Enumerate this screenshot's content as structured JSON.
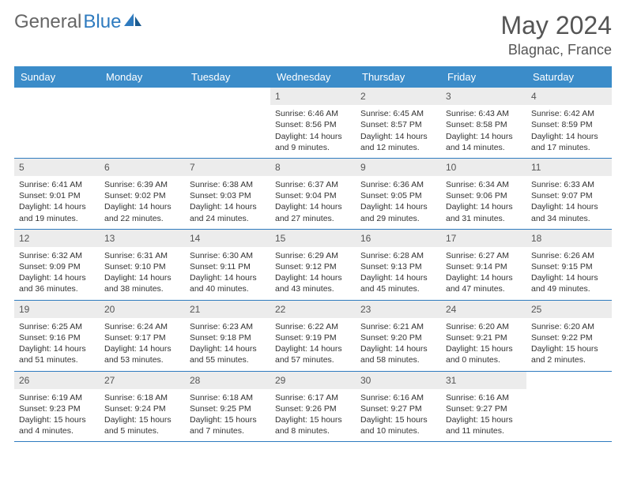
{
  "logo": {
    "text_gray": "General",
    "text_blue": "Blue"
  },
  "title": "May 2024",
  "location": "Blagnac, France",
  "day_names": [
    "Sunday",
    "Monday",
    "Tuesday",
    "Wednesday",
    "Thursday",
    "Friday",
    "Saturday"
  ],
  "colors": {
    "header_bg": "#3b8cc9",
    "header_text": "#ffffff",
    "daynum_bg": "#ececec",
    "border": "#2f7bbf",
    "text": "#333333",
    "title_text": "#555555"
  },
  "weeks": [
    [
      null,
      null,
      null,
      {
        "n": "1",
        "sunrise": "6:46 AM",
        "sunset": "8:56 PM",
        "day": "14 hours and 9 minutes."
      },
      {
        "n": "2",
        "sunrise": "6:45 AM",
        "sunset": "8:57 PM",
        "day": "14 hours and 12 minutes."
      },
      {
        "n": "3",
        "sunrise": "6:43 AM",
        "sunset": "8:58 PM",
        "day": "14 hours and 14 minutes."
      },
      {
        "n": "4",
        "sunrise": "6:42 AM",
        "sunset": "8:59 PM",
        "day": "14 hours and 17 minutes."
      }
    ],
    [
      {
        "n": "5",
        "sunrise": "6:41 AM",
        "sunset": "9:01 PM",
        "day": "14 hours and 19 minutes."
      },
      {
        "n": "6",
        "sunrise": "6:39 AM",
        "sunset": "9:02 PM",
        "day": "14 hours and 22 minutes."
      },
      {
        "n": "7",
        "sunrise": "6:38 AM",
        "sunset": "9:03 PM",
        "day": "14 hours and 24 minutes."
      },
      {
        "n": "8",
        "sunrise": "6:37 AM",
        "sunset": "9:04 PM",
        "day": "14 hours and 27 minutes."
      },
      {
        "n": "9",
        "sunrise": "6:36 AM",
        "sunset": "9:05 PM",
        "day": "14 hours and 29 minutes."
      },
      {
        "n": "10",
        "sunrise": "6:34 AM",
        "sunset": "9:06 PM",
        "day": "14 hours and 31 minutes."
      },
      {
        "n": "11",
        "sunrise": "6:33 AM",
        "sunset": "9:07 PM",
        "day": "14 hours and 34 minutes."
      }
    ],
    [
      {
        "n": "12",
        "sunrise": "6:32 AM",
        "sunset": "9:09 PM",
        "day": "14 hours and 36 minutes."
      },
      {
        "n": "13",
        "sunrise": "6:31 AM",
        "sunset": "9:10 PM",
        "day": "14 hours and 38 minutes."
      },
      {
        "n": "14",
        "sunrise": "6:30 AM",
        "sunset": "9:11 PM",
        "day": "14 hours and 40 minutes."
      },
      {
        "n": "15",
        "sunrise": "6:29 AM",
        "sunset": "9:12 PM",
        "day": "14 hours and 43 minutes."
      },
      {
        "n": "16",
        "sunrise": "6:28 AM",
        "sunset": "9:13 PM",
        "day": "14 hours and 45 minutes."
      },
      {
        "n": "17",
        "sunrise": "6:27 AM",
        "sunset": "9:14 PM",
        "day": "14 hours and 47 minutes."
      },
      {
        "n": "18",
        "sunrise": "6:26 AM",
        "sunset": "9:15 PM",
        "day": "14 hours and 49 minutes."
      }
    ],
    [
      {
        "n": "19",
        "sunrise": "6:25 AM",
        "sunset": "9:16 PM",
        "day": "14 hours and 51 minutes."
      },
      {
        "n": "20",
        "sunrise": "6:24 AM",
        "sunset": "9:17 PM",
        "day": "14 hours and 53 minutes."
      },
      {
        "n": "21",
        "sunrise": "6:23 AM",
        "sunset": "9:18 PM",
        "day": "14 hours and 55 minutes."
      },
      {
        "n": "22",
        "sunrise": "6:22 AM",
        "sunset": "9:19 PM",
        "day": "14 hours and 57 minutes."
      },
      {
        "n": "23",
        "sunrise": "6:21 AM",
        "sunset": "9:20 PM",
        "day": "14 hours and 58 minutes."
      },
      {
        "n": "24",
        "sunrise": "6:20 AM",
        "sunset": "9:21 PM",
        "day": "15 hours and 0 minutes."
      },
      {
        "n": "25",
        "sunrise": "6:20 AM",
        "sunset": "9:22 PM",
        "day": "15 hours and 2 minutes."
      }
    ],
    [
      {
        "n": "26",
        "sunrise": "6:19 AM",
        "sunset": "9:23 PM",
        "day": "15 hours and 4 minutes."
      },
      {
        "n": "27",
        "sunrise": "6:18 AM",
        "sunset": "9:24 PM",
        "day": "15 hours and 5 minutes."
      },
      {
        "n": "28",
        "sunrise": "6:18 AM",
        "sunset": "9:25 PM",
        "day": "15 hours and 7 minutes."
      },
      {
        "n": "29",
        "sunrise": "6:17 AM",
        "sunset": "9:26 PM",
        "day": "15 hours and 8 minutes."
      },
      {
        "n": "30",
        "sunrise": "6:16 AM",
        "sunset": "9:27 PM",
        "day": "15 hours and 10 minutes."
      },
      {
        "n": "31",
        "sunrise": "6:16 AM",
        "sunset": "9:27 PM",
        "day": "15 hours and 11 minutes."
      },
      null
    ]
  ],
  "labels": {
    "sunrise": "Sunrise:",
    "sunset": "Sunset:",
    "daylight": "Daylight:"
  }
}
